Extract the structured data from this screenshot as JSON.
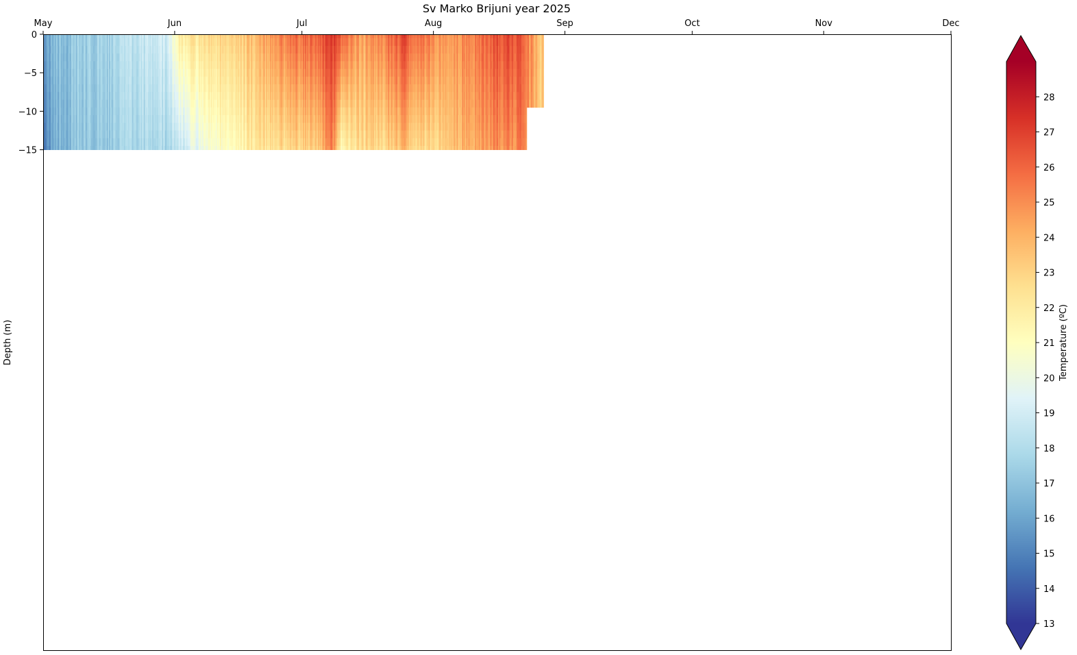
{
  "chart_data": {
    "type": "heatmap",
    "title": "Sv Marko Brijuni year 2025",
    "xlabel": "",
    "ylabel": "Depth (m)",
    "x_axis": {
      "position": "top",
      "type": "date",
      "range": [
        "2025-05-01",
        "2025-12-01"
      ],
      "tick_labels": [
        "May",
        "Jun",
        "Jul",
        "Aug",
        "Sep",
        "Oct",
        "Nov",
        "Dec"
      ],
      "tick_dates": [
        "2025-05-01",
        "2025-06-01",
        "2025-07-01",
        "2025-08-01",
        "2025-09-01",
        "2025-10-01",
        "2025-11-01",
        "2025-12-01"
      ]
    },
    "y_axis": {
      "range": [
        -80,
        0
      ],
      "tick_values": [
        0,
        -5,
        -10,
        -15
      ],
      "tick_labels": [
        "0",
        "−5",
        "−10",
        "−15"
      ]
    },
    "colorbar": {
      "label": "Temperature (ºC)",
      "colormap": "RdYlBu_r",
      "range": [
        13,
        29
      ],
      "extend": "both",
      "tick_values": [
        13,
        14,
        15,
        16,
        17,
        18,
        19,
        20,
        21,
        22,
        23,
        24,
        25,
        26,
        27,
        28
      ],
      "tick_labels": [
        "13",
        "14",
        "15",
        "16",
        "17",
        "18",
        "19",
        "20",
        "21",
        "22",
        "23",
        "24",
        "25",
        "26",
        "27",
        "28"
      ],
      "colors": [
        "#313695",
        "#4575b4",
        "#74add1",
        "#abd9e9",
        "#e0f3f8",
        "#ffffbf",
        "#fee090",
        "#fdae61",
        "#f46d43",
        "#d73027",
        "#a50026"
      ]
    },
    "depth_levels": [
      0,
      -1,
      -2,
      -3,
      -4,
      -5,
      -6,
      -7,
      -8,
      -9,
      -10,
      -11,
      -12,
      -13,
      -14,
      -15
    ],
    "data_end_dates": {
      "surface_to_10m": "2025-08-26",
      "10m_to_15m": "2025-08-22"
    },
    "temperature_profile": [
      {
        "date": "2025-05-01",
        "surface": 16.2,
        "bottom": 15.3
      },
      {
        "date": "2025-05-05",
        "surface": 16.8,
        "bottom": 16.4
      },
      {
        "date": "2025-05-10",
        "surface": 17.2,
        "bottom": 16.9
      },
      {
        "date": "2025-05-15",
        "surface": 17.6,
        "bottom": 17.2
      },
      {
        "date": "2025-05-20",
        "surface": 18.0,
        "bottom": 17.4
      },
      {
        "date": "2025-05-25",
        "surface": 18.5,
        "bottom": 17.7
      },
      {
        "date": "2025-05-30",
        "surface": 19.0,
        "bottom": 17.8
      },
      {
        "date": "2025-06-02",
        "surface": 22.0,
        "bottom": 18.6
      },
      {
        "date": "2025-06-06",
        "surface": 22.3,
        "bottom": 19.6
      },
      {
        "date": "2025-06-10",
        "surface": 22.8,
        "bottom": 20.6
      },
      {
        "date": "2025-06-15",
        "surface": 23.2,
        "bottom": 21.2
      },
      {
        "date": "2025-06-20",
        "surface": 23.8,
        "bottom": 22.3
      },
      {
        "date": "2025-06-25",
        "surface": 25.2,
        "bottom": 22.6
      },
      {
        "date": "2025-06-30",
        "surface": 25.8,
        "bottom": 22.9
      },
      {
        "date": "2025-07-05",
        "surface": 26.2,
        "bottom": 23.3
      },
      {
        "date": "2025-07-08",
        "surface": 27.2,
        "bottom": 25.5
      },
      {
        "date": "2025-07-10",
        "surface": 26.3,
        "bottom": 21.5
      },
      {
        "date": "2025-07-15",
        "surface": 24.3,
        "bottom": 22.6
      },
      {
        "date": "2025-07-20",
        "surface": 25.5,
        "bottom": 22.8
      },
      {
        "date": "2025-07-25",
        "surface": 26.8,
        "bottom": 23.8
      },
      {
        "date": "2025-07-30",
        "surface": 25.2,
        "bottom": 22.3
      },
      {
        "date": "2025-08-05",
        "surface": 24.8,
        "bottom": 23.6
      },
      {
        "date": "2025-08-10",
        "surface": 25.3,
        "bottom": 24.1
      },
      {
        "date": "2025-08-15",
        "surface": 26.3,
        "bottom": 24.8
      },
      {
        "date": "2025-08-20",
        "surface": 26.7,
        "bottom": 25.0
      },
      {
        "date": "2025-08-22",
        "surface": 26.1,
        "bottom": 25.4
      },
      {
        "date": "2025-08-26",
        "surface": 23.5,
        "bottom": 23.1
      }
    ]
  }
}
